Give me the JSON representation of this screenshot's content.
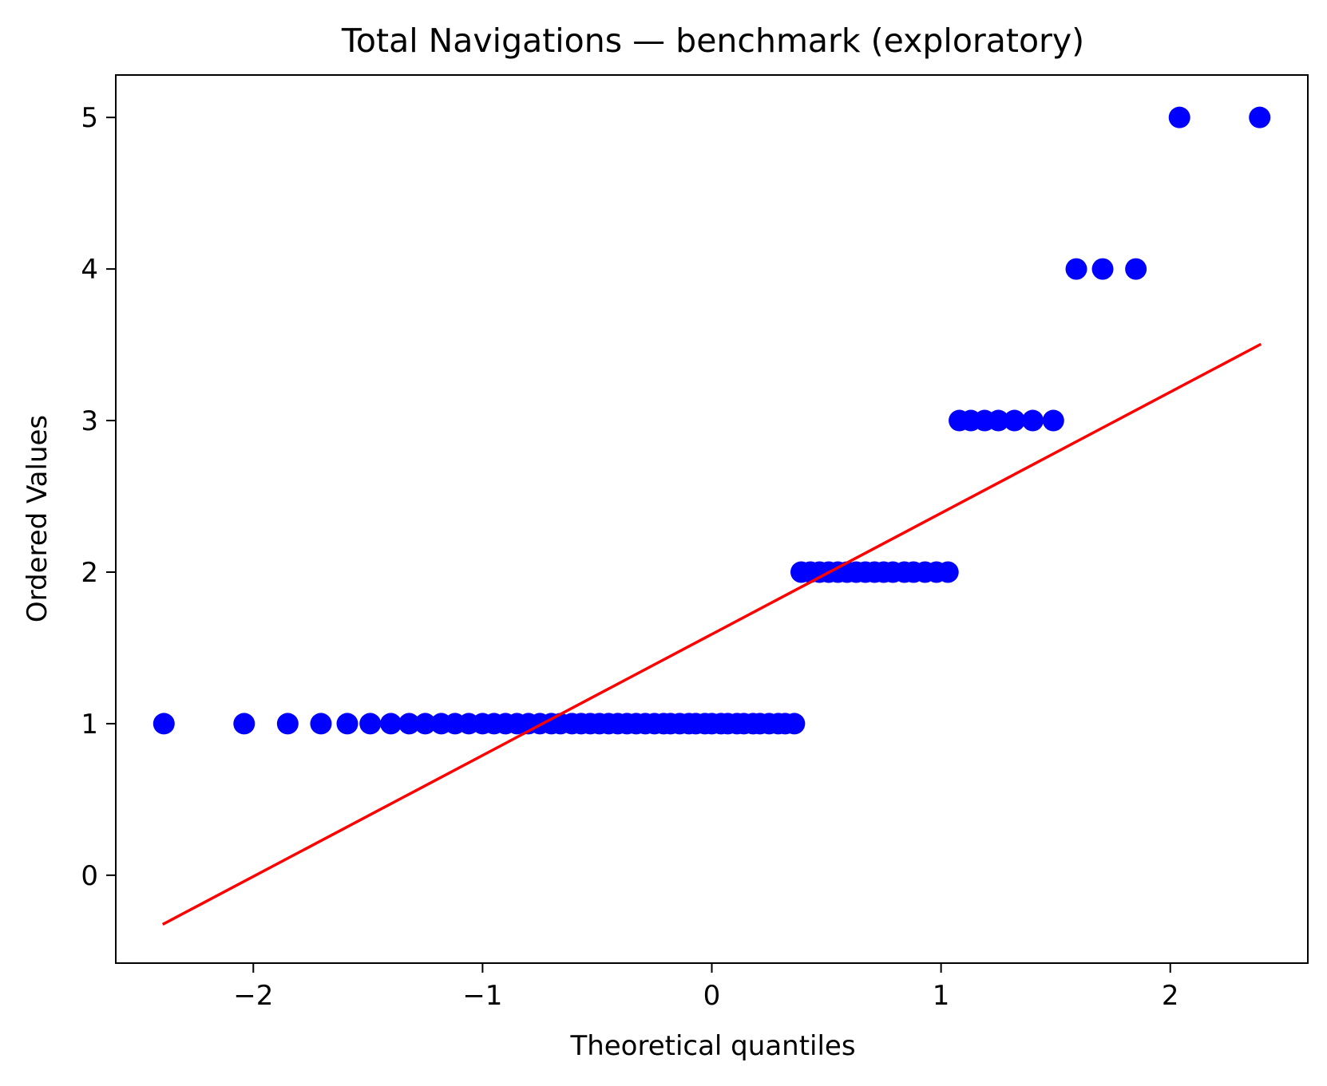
{
  "chart_data": {
    "type": "scatter",
    "title": "Total Navigations — benchmark (exploratory)",
    "xlabel": "Theoretical quantiles",
    "ylabel": "Ordered Values",
    "xlim": [
      -2.6,
      2.6
    ],
    "ylim": [
      -0.58,
      5.28
    ],
    "xticks": [
      -2,
      -1,
      0,
      1,
      2
    ],
    "xtick_labels": [
      "−2",
      "−1",
      "0",
      "1",
      "2"
    ],
    "yticks": [
      0,
      1,
      2,
      3,
      4,
      5
    ],
    "ytick_labels": [
      "0",
      "1",
      "2",
      "3",
      "4",
      "5"
    ],
    "grid": false,
    "marker_color": "#0000ff",
    "line_color": "#ff0000",
    "series": [
      {
        "kind": "points",
        "points": [
          [
            -2.39,
            1
          ],
          [
            -2.04,
            1
          ],
          [
            -1.85,
            1
          ],
          [
            -1.705,
            1
          ],
          [
            -1.59,
            1
          ],
          [
            -1.49,
            1
          ],
          [
            -1.4,
            1
          ],
          [
            -1.32,
            1
          ],
          [
            -1.25,
            1
          ],
          [
            -1.18,
            1
          ],
          [
            -1.12,
            1
          ],
          [
            -1.06,
            1
          ],
          [
            -1.0,
            1
          ],
          [
            -0.95,
            1
          ],
          [
            -0.9,
            1
          ],
          [
            -0.85,
            1
          ],
          [
            -0.8,
            1
          ],
          [
            -0.75,
            1
          ],
          [
            -0.7,
            1
          ],
          [
            -0.66,
            1
          ],
          [
            -0.61,
            1
          ],
          [
            -0.57,
            1
          ],
          [
            -0.53,
            1
          ],
          [
            -0.49,
            1
          ],
          [
            -0.45,
            1
          ],
          [
            -0.41,
            1
          ],
          [
            -0.37,
            1
          ],
          [
            -0.33,
            1
          ],
          [
            -0.29,
            1
          ],
          [
            -0.25,
            1
          ],
          [
            -0.21,
            1
          ],
          [
            -0.18,
            1
          ],
          [
            -0.14,
            1
          ],
          [
            -0.1,
            1
          ],
          [
            -0.07,
            1
          ],
          [
            -0.03,
            1
          ],
          [
            0.0,
            1
          ],
          [
            0.04,
            1
          ],
          [
            0.07,
            1
          ],
          [
            0.11,
            1
          ],
          [
            0.14,
            1
          ],
          [
            0.18,
            1
          ],
          [
            0.21,
            1
          ],
          [
            0.25,
            1
          ],
          [
            0.29,
            1
          ],
          [
            0.32,
            1
          ],
          [
            0.36,
            1
          ],
          [
            0.39,
            2
          ],
          [
            0.43,
            2
          ],
          [
            0.47,
            2
          ],
          [
            0.51,
            2
          ],
          [
            0.55,
            2
          ],
          [
            0.59,
            2
          ],
          [
            0.63,
            2
          ],
          [
            0.67,
            2
          ],
          [
            0.71,
            2
          ],
          [
            0.75,
            2
          ],
          [
            0.79,
            2
          ],
          [
            0.84,
            2
          ],
          [
            0.88,
            2
          ],
          [
            0.93,
            2
          ],
          [
            0.98,
            2
          ],
          [
            1.03,
            2
          ],
          [
            1.08,
            3
          ],
          [
            1.13,
            3
          ],
          [
            1.19,
            3
          ],
          [
            1.25,
            3
          ],
          [
            1.32,
            3
          ],
          [
            1.4,
            3
          ],
          [
            1.49,
            3
          ],
          [
            1.59,
            4
          ],
          [
            1.705,
            4
          ],
          [
            1.85,
            4
          ],
          [
            2.04,
            5
          ],
          [
            2.39,
            5
          ]
        ]
      },
      {
        "kind": "fit-line",
        "points": [
          [
            -2.39,
            -0.32
          ],
          [
            2.39,
            3.5
          ]
        ]
      }
    ]
  }
}
